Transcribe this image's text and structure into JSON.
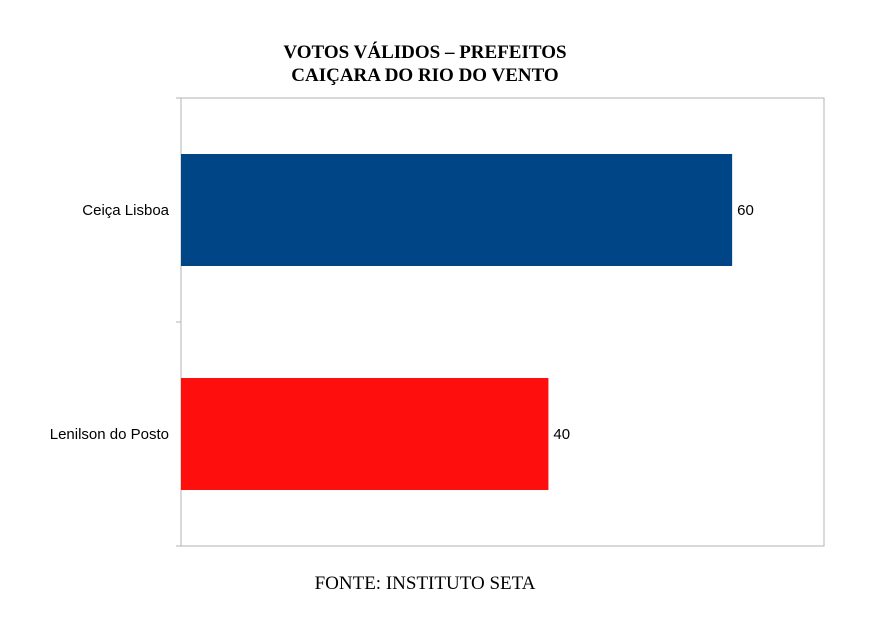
{
  "chart_data": {
    "type": "bar",
    "orientation": "horizontal",
    "title": "VOTOS VÁLIDOS – PREFEITOS",
    "subtitle": "CAIÇARA DO RIO DO VENTO",
    "categories": [
      "Ceiça Lisboa",
      "Lenilson do Posto"
    ],
    "values": [
      60,
      40
    ],
    "value_labels": [
      "60",
      "40"
    ],
    "colors": [
      "#004586",
      "#ff0e0e"
    ],
    "xlim": [
      0,
      70
    ],
    "grid": false,
    "legend": "none",
    "source": "FONTE: INSTITUTO SETA"
  }
}
